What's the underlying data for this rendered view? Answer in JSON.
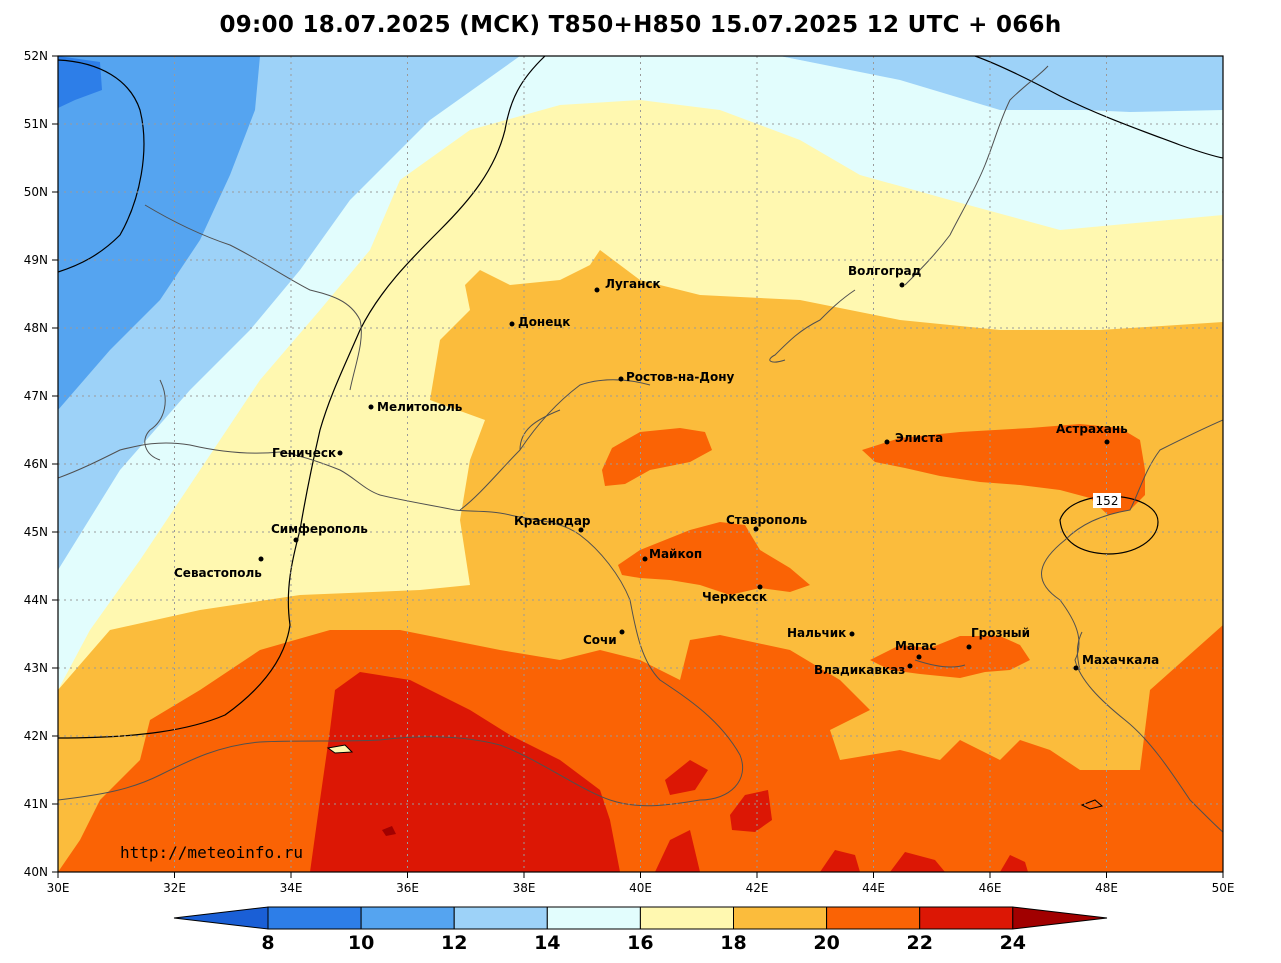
{
  "title": "09:00 18.07.2025 (МСК) T850+H850 15.07.2025 12 UTC + 066h",
  "watermark": "http://meteoinfo.ru",
  "contour_label": "152",
  "lat_labels": [
    "52N",
    "51N",
    "50N",
    "49N",
    "48N",
    "47N",
    "46N",
    "45N",
    "44N",
    "43N",
    "42N",
    "41N",
    "40N"
  ],
  "lon_labels": [
    "30E",
    "32E",
    "34E",
    "36E",
    "38E",
    "40E",
    "42E",
    "44E",
    "46E",
    "48E",
    "50E"
  ],
  "colorbar": {
    "ticks": [
      "8",
      "10",
      "12",
      "14",
      "16",
      "18",
      "20",
      "22",
      "24"
    ],
    "colors": [
      "#1a5fd6",
      "#2d7ee8",
      "#55a4f0",
      "#9dd2f8",
      "#e2fdfd",
      "#fff8b0",
      "#fbbc3c",
      "#fa6305",
      "#dc1705",
      "#a10000"
    ]
  },
  "cities": [
    {
      "name": "Волгоград"
    },
    {
      "name": "Луганск"
    },
    {
      "name": "Донецк"
    },
    {
      "name": "Ростов-на-Дону"
    },
    {
      "name": "Мелитополь"
    },
    {
      "name": "Геническ"
    },
    {
      "name": "Элиста"
    },
    {
      "name": "Астрахань"
    },
    {
      "name": "Краснодар"
    },
    {
      "name": "Ставрополь"
    },
    {
      "name": "Симферополь"
    },
    {
      "name": "Майкоп"
    },
    {
      "name": "Севастополь"
    },
    {
      "name": "Черкесск"
    },
    {
      "name": "Сочи"
    },
    {
      "name": "Нальчик"
    },
    {
      "name": "Магас"
    },
    {
      "name": "Грозный"
    },
    {
      "name": "Владикавказ"
    },
    {
      "name": "Махачкала"
    }
  ]
}
